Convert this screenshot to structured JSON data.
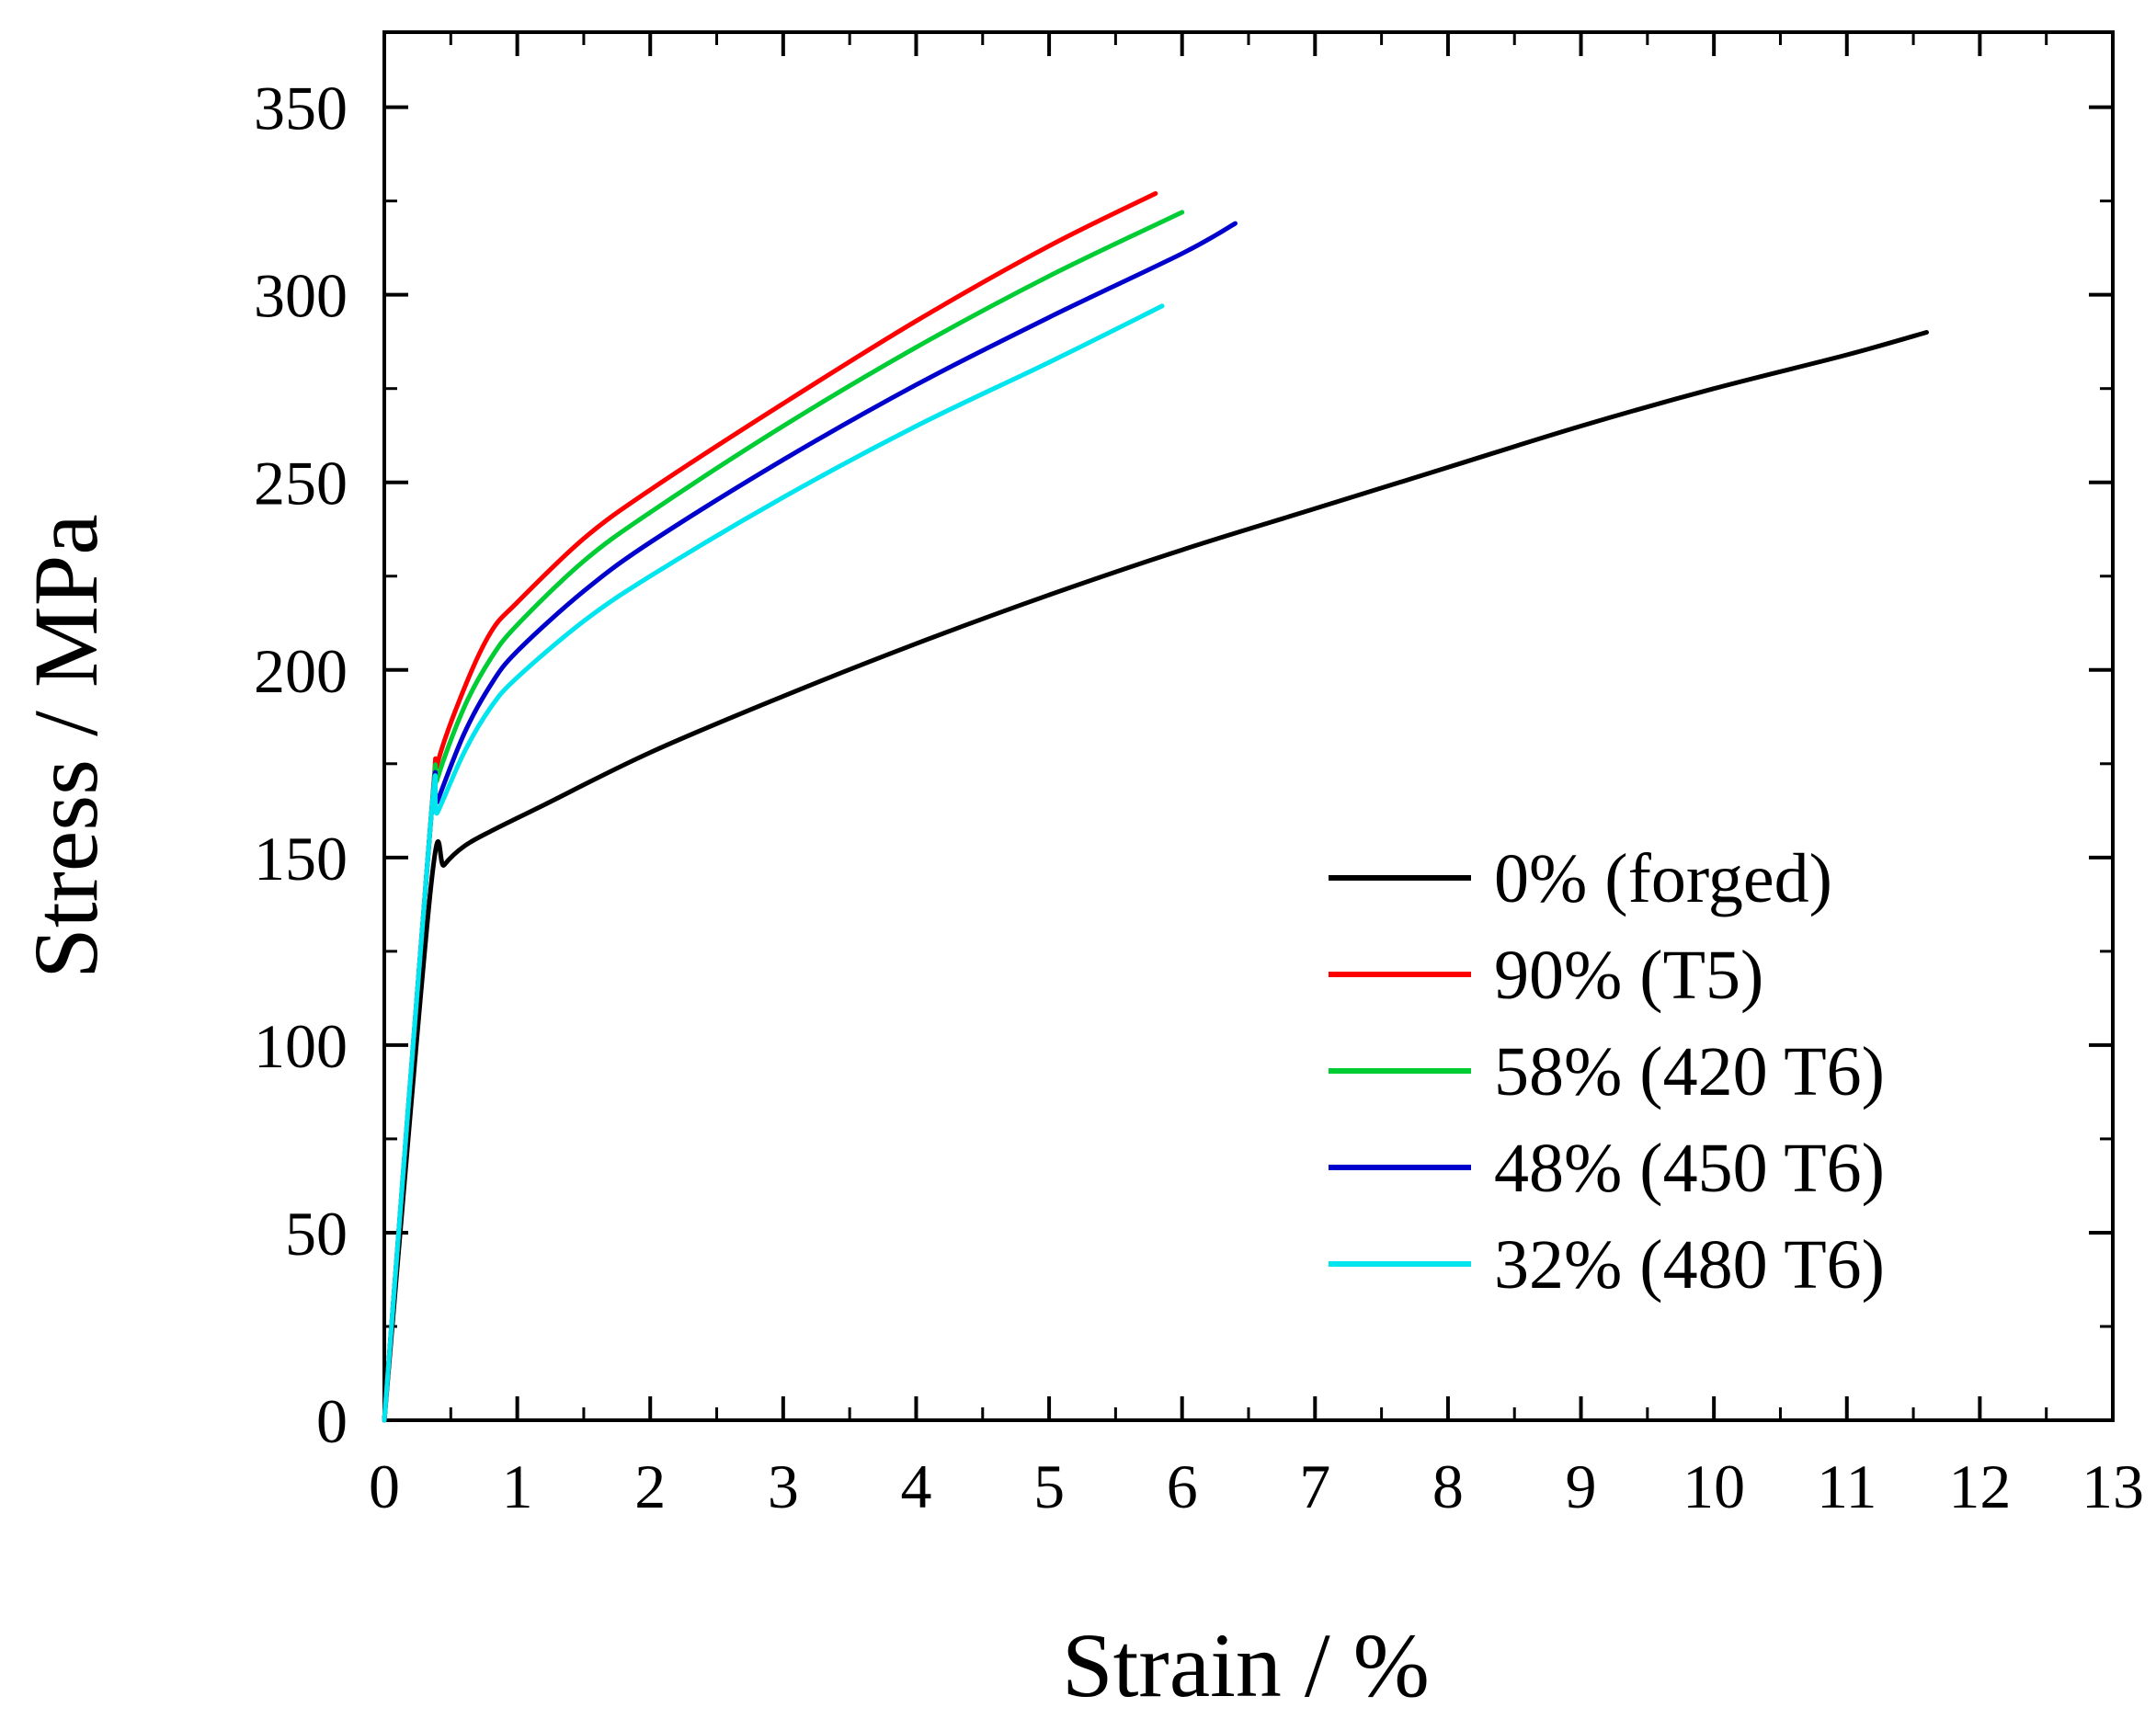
{
  "chart_data": {
    "type": "line",
    "title": "",
    "xlabel": "Strain / %",
    "ylabel": "Stress / MPa",
    "xlim": [
      0,
      13
    ],
    "ylim": [
      0,
      370
    ],
    "xticks": [
      0,
      1,
      2,
      3,
      4,
      5,
      6,
      7,
      8,
      9,
      10,
      11,
      12,
      13
    ],
    "yticks": [
      0,
      50,
      100,
      150,
      200,
      250,
      300,
      350
    ],
    "grid": false,
    "legend_position": "lower-right",
    "series": [
      {
        "name": "0% (forged)",
        "color": "#000000",
        "points": [
          [
            0,
            0
          ],
          [
            0.35,
            142
          ],
          [
            0.45,
            148
          ],
          [
            0.6,
            153
          ],
          [
            0.8,
            157
          ],
          [
            1.2,
            164
          ],
          [
            2,
            178
          ],
          [
            3,
            193
          ],
          [
            4,
            207
          ],
          [
            5,
            220
          ],
          [
            6,
            232
          ],
          [
            7,
            243
          ],
          [
            8,
            254
          ],
          [
            9,
            265
          ],
          [
            10,
            275
          ],
          [
            11,
            284
          ],
          [
            11.6,
            290
          ]
        ]
      },
      {
        "name": "90% (T5)",
        "color": "#ff0000",
        "points": [
          [
            0,
            0
          ],
          [
            0.35,
            160
          ],
          [
            0.4,
            175
          ],
          [
            0.6,
            195
          ],
          [
            0.8,
            210
          ],
          [
            1,
            218
          ],
          [
            1.5,
            235
          ],
          [
            2,
            248
          ],
          [
            3,
            271
          ],
          [
            4,
            293
          ],
          [
            5,
            313
          ],
          [
            5.8,
            327
          ]
        ]
      },
      {
        "name": "58% (420 T6)",
        "color": "#00cc33",
        "points": [
          [
            0,
            0
          ],
          [
            0.35,
            160
          ],
          [
            0.4,
            171
          ],
          [
            0.6,
            190
          ],
          [
            0.8,
            203
          ],
          [
            1,
            212
          ],
          [
            1.5,
            229
          ],
          [
            2,
            242
          ],
          [
            3,
            265
          ],
          [
            4,
            286
          ],
          [
            5,
            305
          ],
          [
            6,
            322
          ]
        ]
      },
      {
        "name": "48% (450 T6)",
        "color": "#0000cc",
        "points": [
          [
            0,
            0
          ],
          [
            0.35,
            160
          ],
          [
            0.4,
            165
          ],
          [
            0.6,
            183
          ],
          [
            0.8,
            196
          ],
          [
            1,
            205
          ],
          [
            1.5,
            221
          ],
          [
            2,
            234
          ],
          [
            3,
            256
          ],
          [
            4,
            276
          ],
          [
            5,
            294
          ],
          [
            6,
            311
          ],
          [
            6.4,
            319
          ]
        ]
      },
      {
        "name": "32% (480 T6)",
        "color": "#00e5ee",
        "points": [
          [
            0,
            0
          ],
          [
            0.35,
            160
          ],
          [
            0.4,
            162
          ],
          [
            0.6,
            178
          ],
          [
            0.8,
            190
          ],
          [
            1,
            198
          ],
          [
            1.5,
            213
          ],
          [
            2,
            225
          ],
          [
            3,
            246
          ],
          [
            4,
            265
          ],
          [
            5,
            282
          ],
          [
            5.85,
            297
          ]
        ]
      }
    ]
  }
}
